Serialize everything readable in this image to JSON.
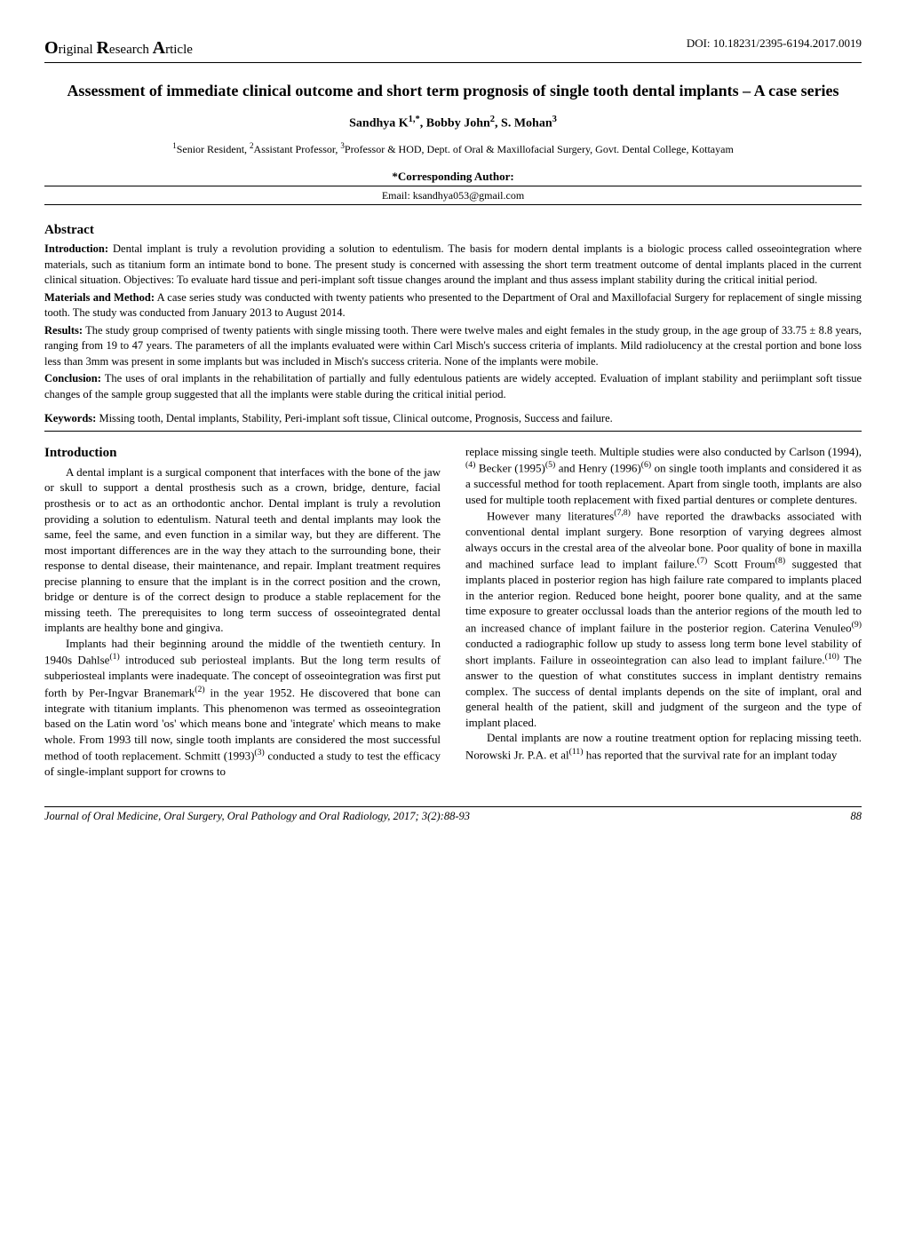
{
  "header": {
    "left_html": "<span class='cap'>O</span>riginal <span class='cap'>R</span>esearch <span class='cap'>A</span>rticle",
    "right": "DOI: 10.18231/2395-6194.2017.0019"
  },
  "title": "Assessment of immediate clinical outcome and short term prognosis of single tooth dental implants – A case series",
  "authors_html": "Sandhya K<sup>1,*</sup>, Bobby John<sup>2</sup>, S. Mohan<sup>3</sup>",
  "affiliation_html": "<sup>1</sup>Senior Resident, <sup>2</sup>Assistant Professor, <sup>3</sup>Professor & HOD, Dept. of Oral & Maxillofacial Surgery, Govt. Dental College, Kottayam",
  "corresponding": {
    "label": "*Corresponding Author:",
    "email": "Email: ksandhya053@gmail.com"
  },
  "abstract_heading": "Abstract",
  "abstract": {
    "intro_label": "Introduction:",
    "intro": " Dental implant is truly a revolution providing a solution to edentulism. The basis for modern dental implants is a biologic process called osseointegration where materials, such as titanium form an intimate bond to bone. The present study is concerned with assessing the short term treatment outcome of dental implants placed in the current clinical situation. Objectives: To evaluate hard tissue and peri-implant soft tissue changes around the implant and thus assess implant stability during the critical initial period.",
    "methods_label": "Materials and Method:",
    "methods": " A case series study was conducted with twenty patients who presented to the Department of Oral and Maxillofacial Surgery for replacement of single missing tooth. The study was conducted from January 2013 to August 2014.",
    "results_label": "Results:",
    "results": " The study group comprised of twenty patients with single missing tooth. There were twelve males and eight females in the study group, in the age group of 33.75 ± 8.8 years, ranging from 19 to 47 years. The parameters of all the implants evaluated were within Carl Misch's success criteria of implants. Mild radiolucency at the crestal portion and bone loss less than 3mm was present in some implants but was included in Misch's success criteria. None of the implants were mobile.",
    "conclusion_label": "Conclusion:",
    "conclusion": " The uses of oral implants in the rehabilitation of partially and fully edentulous patients are widely accepted. Evaluation of implant stability and periimplant soft tissue changes of the sample group suggested that all the implants were stable during the critical initial period."
  },
  "keywords": {
    "label": "Keywords:",
    "text": " Missing tooth, Dental implants, Stability, Peri-implant soft tissue, Clinical outcome, Prognosis, Success and failure."
  },
  "intro_heading": "Introduction",
  "body": {
    "left_p1": "A dental implant is a surgical component that interfaces with the bone of the jaw or skull to support a dental prosthesis such as a crown, bridge, denture, facial prosthesis or to act as an orthodontic anchor. Dental implant is truly a revolution providing a solution to edentulism. Natural teeth and dental implants may look the same, feel the same, and even function in a similar way, but they are different. The most important differences are in the way they attach to the surrounding bone, their response to dental disease, their maintenance, and repair. Implant treatment requires precise planning to ensure that the implant is in the correct position and the crown, bridge or denture is of the correct design to produce a stable replacement for the missing teeth. The prerequisites to long term success of osseointegrated dental implants are healthy bone and gingiva.",
    "left_p2_html": "Implants had their beginning around the middle of the twentieth century. In 1940s Dahlse<sup>(1)</sup> introduced sub periosteal implants. But the long term results of subperiosteal implants were inadequate. The concept of osseointegration was first put forth by Per-Ingvar Branemark<sup>(2)</sup> in the year 1952. He discovered that bone can integrate with titanium implants. This phenomenon was termed as osseointegration based on the Latin word 'os' which means bone and 'integrate' which means to make whole. From 1993 till now, single tooth implants are considered the most successful method of tooth replacement. Schmitt (1993)<sup>(3)</sup> conducted a study to test the efficacy of single-implant support for crowns to",
    "right_p1_html": "replace missing single teeth. Multiple studies were also conducted by Carlson (1994),<sup>(4)</sup> Becker (1995)<sup>(5)</sup> and Henry (1996)<sup>(6)</sup> on single tooth implants and considered it as a successful method for tooth replacement. Apart from single tooth, implants are also used for multiple tooth replacement with fixed partial dentures or complete dentures.",
    "right_p2_html": "However many literatures<sup>(7,8)</sup> have reported the drawbacks associated with conventional dental implant surgery. Bone resorption of varying degrees almost always occurs in the crestal area of the alveolar bone. Poor quality of bone in maxilla and machined surface lead to implant failure.<sup>(7)</sup> Scott Froum<sup>(8)</sup> suggested that implants placed in posterior region has high failure rate compared to implants placed in the anterior region. Reduced bone height, poorer bone quality, and at the same time exposure to greater occlussal loads than the anterior regions of the mouth led to an increased chance of implant failure in the posterior region. Caterina Venuleo<sup>(9)</sup> conducted a radiographic follow up study to assess long term bone level stability of short implants. Failure in osseointegration can also lead to implant failure.<sup>(10)</sup> The answer to the question of what constitutes success in implant dentistry remains complex. The success of dental implants depends on the site of implant, oral and general health of the patient, skill and judgment of the surgeon and the type of implant placed.",
    "right_p3_html": "Dental implants are now a routine treatment option for replacing missing teeth. Norowski Jr. P.A. et al<sup>(11)</sup> has reported that the survival rate for an implant today"
  },
  "footer": {
    "journal": "Journal of Oral Medicine, Oral Surgery, Oral Pathology and Oral Radiology, 2017; 3(2):88-93",
    "page": "88"
  }
}
